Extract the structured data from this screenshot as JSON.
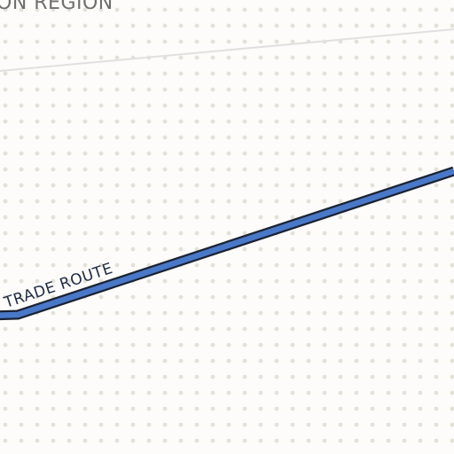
{
  "map": {
    "region_label": "ON REGION",
    "route_label": "TRADE ROUTE",
    "colors": {
      "background": "#fdfcfa",
      "dot": "#e2e2d8",
      "boundary": "#e0e0e0",
      "route_fill": "#4a78c8",
      "route_outline": "#1a2233",
      "route_text": "#1f2a44",
      "region_text": "#6f6f6f"
    },
    "pattern": "dotted-terrain"
  }
}
